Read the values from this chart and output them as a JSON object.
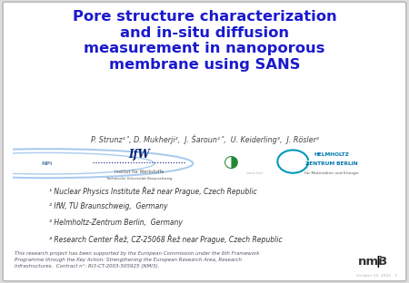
{
  "title_lines": [
    "Pore structure characterization",
    "and in-situ diffusion",
    "measurement in nanoporous",
    "membrane using SANS"
  ],
  "title_color": "#1a1acd",
  "authors": "P. Strunz¹˄, D. Mukherji²,  J. Šaroun¹˄,  U. Keiderling³,  J. Rösler²",
  "authors_color": "#444444",
  "affiliations": [
    "¹ Nuclear Physics Institute Řež near Prague, Czech Republic",
    "² IfW, TU Braunschweig,  Germany",
    "³ Helmholtz-Zentrum Berlin,  Germany",
    "⁴ Research Center Řež, CZ-25068 Řež near Prague, Czech Republic"
  ],
  "affiliations_color": "#333333",
  "footer_text": "This research project has been supported by the European Commission under the 6th Framework\nProgramme through the Key Action: Strengthening the European Research Area, Research\nInfrastructures.  Contract n°: RI3-CT-2003-505925 (NMI3).",
  "footer_color": "#555566",
  "nmi3_color": "#333333",
  "date_text": "October 12, 2015   1",
  "date_color": "#aaaaaa",
  "bg_color": "#dddddd",
  "card_color": "#ffffff",
  "border_color": "#bbbbbb"
}
